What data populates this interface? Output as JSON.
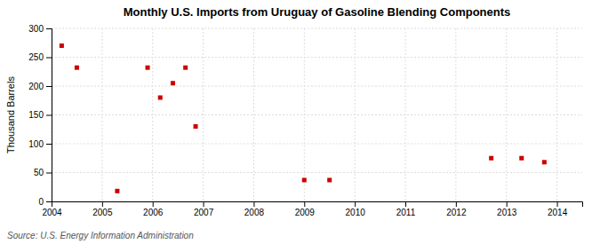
{
  "chart_data": {
    "type": "scatter",
    "title": "Monthly U.S. Imports from Uruguay of Gasoline Blending Components",
    "ylabel": "Thousand Barrels",
    "source": "Source: U.S. Energy Information Administration",
    "x": [
      2004.2,
      2004.5,
      2005.3,
      2005.9,
      2006.15,
      2006.4,
      2006.65,
      2006.85,
      2009.0,
      2009.5,
      2012.7,
      2013.3,
      2013.75
    ],
    "values": [
      270,
      232,
      18,
      232,
      180,
      205,
      232,
      130,
      37,
      37,
      75,
      75,
      68
    ],
    "color": "#cc0000",
    "marker": "square",
    "xlim": [
      2004,
      2014.5
    ],
    "ylim": [
      0,
      300
    ],
    "xticks": [
      2004,
      2005,
      2006,
      2007,
      2008,
      2009,
      2010,
      2011,
      2012,
      2013,
      2014
    ],
    "yticks": [
      0,
      50,
      100,
      150,
      200,
      250,
      300
    ],
    "grid": true
  }
}
